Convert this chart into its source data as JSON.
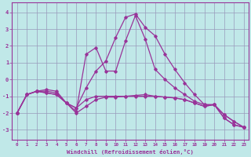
{
  "xlabel": "Windchill (Refroidissement éolien,°C)",
  "xlim": [
    -0.5,
    23.5
  ],
  "ylim": [
    -3.6,
    4.6
  ],
  "yticks": [
    -3,
    -2,
    -1,
    0,
    1,
    2,
    3,
    4
  ],
  "xticks": [
    0,
    1,
    2,
    3,
    4,
    5,
    6,
    7,
    8,
    9,
    10,
    11,
    12,
    13,
    14,
    15,
    16,
    17,
    18,
    19,
    20,
    21,
    22,
    23
  ],
  "bg_color": "#c0e8e8",
  "line_color": "#993399",
  "grid_color": "#9999bb",
  "curves": [
    {
      "x": [
        0,
        1,
        2,
        3,
        4,
        5,
        6,
        7,
        8,
        9,
        10,
        11,
        12,
        13,
        14,
        15,
        16,
        17,
        18,
        19,
        20,
        21,
        22,
        23
      ],
      "y": [
        -2.0,
        -0.9,
        -0.7,
        -0.8,
        -0.9,
        -1.4,
        -1.7,
        -0.5,
        0.5,
        1.1,
        2.5,
        3.7,
        3.9,
        3.1,
        2.6,
        1.5,
        0.6,
        -0.2,
        -0.9,
        -1.5,
        -1.5,
        -2.3,
        -2.7,
        -2.85
      ]
    },
    {
      "x": [
        0,
        1,
        2,
        3,
        4,
        5,
        6,
        7,
        8,
        9,
        10,
        11,
        12,
        13,
        14,
        15,
        16,
        17,
        18,
        19,
        20,
        21,
        22,
        23
      ],
      "y": [
        -2.0,
        -0.9,
        -0.7,
        -0.8,
        -0.9,
        -1.4,
        -1.9,
        1.5,
        1.9,
        0.5,
        0.5,
        2.3,
        3.8,
        2.4,
        0.6,
        0.0,
        -0.5,
        -0.9,
        -1.3,
        -1.5,
        -1.5,
        -2.3,
        -2.7,
        -2.85
      ]
    },
    {
      "x": [
        0,
        1,
        2,
        3,
        4,
        5,
        6,
        7,
        8,
        9,
        10,
        11,
        12,
        13,
        14,
        15,
        16,
        17,
        18,
        19,
        20,
        21,
        22,
        23
      ],
      "y": [
        -2.0,
        -0.9,
        -0.7,
        -0.7,
        -0.8,
        -1.4,
        -1.7,
        -1.2,
        -1.0,
        -1.0,
        -1.0,
        -1.0,
        -1.0,
        -1.0,
        -1.0,
        -1.05,
        -1.1,
        -1.2,
        -1.4,
        -1.6,
        -1.5,
        -2.1,
        -2.5,
        -2.85
      ]
    },
    {
      "x": [
        0,
        1,
        2,
        3,
        4,
        5,
        6,
        7,
        8,
        9,
        10,
        11,
        12,
        13,
        14,
        15,
        16,
        17,
        18,
        19,
        20,
        21,
        22,
        23
      ],
      "y": [
        -2.0,
        -0.9,
        -0.7,
        -0.6,
        -0.7,
        -1.4,
        -2.0,
        -1.6,
        -1.2,
        -1.05,
        -1.05,
        -1.0,
        -0.95,
        -0.9,
        -1.0,
        -1.05,
        -1.1,
        -1.2,
        -1.4,
        -1.6,
        -1.5,
        -2.1,
        -2.5,
        -2.85
      ]
    }
  ]
}
